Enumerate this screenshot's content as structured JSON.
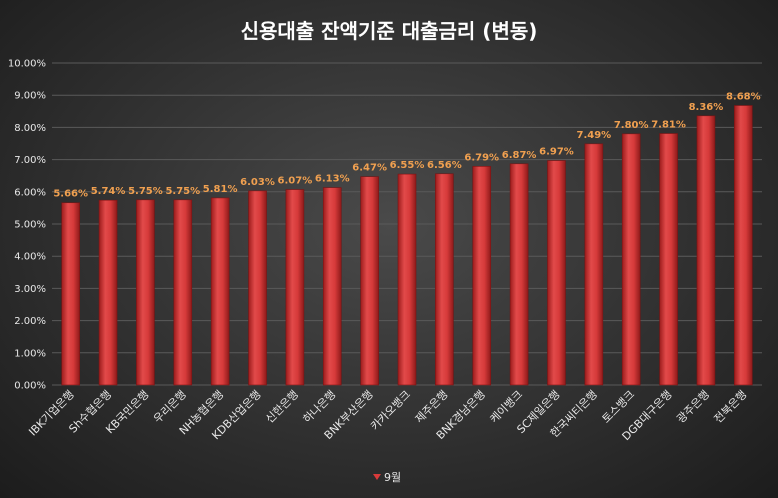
{
  "chart_data": {
    "type": "bar",
    "title": "신용대출 잔액기준 대출금리 (변동)",
    "categories": [
      "IBK기업은행",
      "Sh수협은행",
      "KB국민은행",
      "우리은행",
      "NH농협은행",
      "KDB산업은행",
      "신한은행",
      "하나은행",
      "BNK부산은행",
      "카카오뱅크",
      "제주은행",
      "BNK경남은행",
      "케이뱅크",
      "SC제일은행",
      "한국씨티은행",
      "토스뱅크",
      "DGB대구은행",
      "광주은행",
      "전북은행"
    ],
    "series": [
      {
        "name": "9월",
        "values": [
          5.66,
          5.74,
          5.75,
          5.75,
          5.81,
          6.03,
          6.07,
          6.13,
          6.47,
          6.55,
          6.56,
          6.79,
          6.87,
          6.97,
          7.49,
          7.8,
          7.81,
          8.36,
          8.68
        ]
      }
    ],
    "data_labels": [
      "5.66%",
      "5.74%",
      "5.75%",
      "5.75%",
      "5.81%",
      "6.03%",
      "6.07%",
      "6.13%",
      "6.47%",
      "6.55%",
      "6.56%",
      "6.79%",
      "6.87%",
      "6.97%",
      "7.49%",
      "7.80%",
      "7.81%",
      "8.36%",
      "8.68%"
    ],
    "y_ticks": [
      "0.00%",
      "1.00%",
      "2.00%",
      "3.00%",
      "4.00%",
      "5.00%",
      "6.00%",
      "7.00%",
      "8.00%",
      "9.00%",
      "10.00%"
    ],
    "ylim": [
      0,
      10
    ],
    "grid": true,
    "legend": "bottom",
    "colors": {
      "bar": "#d93a3a",
      "bar_dark": "#a01e1e",
      "label": "#f0a050"
    }
  }
}
